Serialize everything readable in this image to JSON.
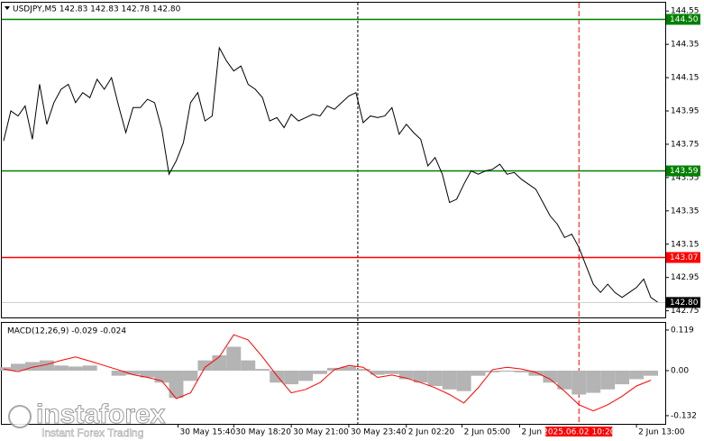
{
  "chart_data": [
    {
      "type": "line",
      "title": "USDJPY,M5  142.83 142.83 142.78 142.80",
      "color": "#000000",
      "xlim": [
        0,
        369
      ],
      "ylim": [
        142.71,
        144.6
      ],
      "yticks": [
        144.55,
        144.35,
        144.15,
        143.95,
        143.75,
        143.55,
        143.35,
        143.15,
        142.95,
        142.75
      ],
      "x": [
        1,
        5,
        9,
        13,
        17,
        21,
        25,
        29,
        33,
        37,
        41,
        45,
        49,
        53,
        57,
        61,
        65,
        69,
        73,
        77,
        81,
        85,
        89,
        93,
        97,
        101,
        105,
        109,
        113,
        117,
        121,
        125,
        129,
        133,
        137,
        141,
        145,
        149,
        153,
        157,
        161,
        165,
        169,
        173,
        177,
        181,
        185,
        189,
        193,
        197,
        201,
        205,
        209,
        213,
        217,
        221,
        225,
        229,
        233,
        237,
        241,
        245,
        249,
        253,
        257,
        261,
        265,
        269,
        273,
        277,
        281,
        285,
        289,
        293,
        297,
        301,
        305,
        309,
        313,
        317,
        321,
        325,
        329,
        333,
        337,
        341,
        345,
        349,
        353,
        357,
        361,
        365
      ],
      "values": [
        143.77,
        143.95,
        143.92,
        143.98,
        143.78,
        144.11,
        143.87,
        144.0,
        144.08,
        144.11,
        144.0,
        144.06,
        144.03,
        144.14,
        144.08,
        144.15,
        143.98,
        143.82,
        143.97,
        143.97,
        144.02,
        144.0,
        143.84,
        143.57,
        143.65,
        143.76,
        144.0,
        144.06,
        143.89,
        143.92,
        144.33,
        144.25,
        144.19,
        144.22,
        144.11,
        144.08,
        144.03,
        143.89,
        143.91,
        143.85,
        143.93,
        143.89,
        143.91,
        143.93,
        143.92,
        143.98,
        143.96,
        144.0,
        144.04,
        144.06,
        143.88,
        143.92,
        143.91,
        143.92,
        143.97,
        143.81,
        143.87,
        143.82,
        143.78,
        143.62,
        143.67,
        143.57,
        143.4,
        143.42,
        143.51,
        143.59,
        143.57,
        143.59,
        143.6,
        143.63,
        143.57,
        143.58,
        143.54,
        143.51,
        143.48,
        143.4,
        143.32,
        143.27,
        143.19,
        143.21,
        143.13,
        143.02,
        142.91,
        142.86,
        142.91,
        142.86,
        142.83,
        142.86,
        142.89,
        142.94,
        142.83,
        142.8
      ],
      "levels": [
        {
          "value": 144.5,
          "label": "144.50",
          "color": "#008000"
        },
        {
          "value": 143.59,
          "label": "143.59",
          "color": "#008000"
        },
        {
          "value": 143.07,
          "label": "143.07",
          "color": "#ff0000"
        }
      ],
      "last_price": {
        "value": 142.8,
        "label": "142.80"
      },
      "markers": [
        {
          "x": 198,
          "color": "#000000"
        },
        {
          "x": 321,
          "color": "#ff0000",
          "label": "2025.06.02 10:20"
        }
      ],
      "watermark": {
        "name": "instaforex",
        "tagline": "Instant Forex Trading"
      }
    },
    {
      "type": "macd",
      "title": "MACD(12,26,9) -0.029 -0.024",
      "xlim": [
        0,
        369
      ],
      "ylim": [
        -0.156,
        0.14
      ],
      "yticks": [
        0.119,
        {
          "value": 0,
          "label": "0.00"
        },
        -0.132
      ],
      "xticks": [
        {
          "value": 98,
          "label": "30 May 15:40"
        },
        {
          "value": 129,
          "label": "30 May 18:20"
        },
        {
          "value": 161,
          "label": "30 May 21:00"
        },
        {
          "value": 193,
          "label": "30 May 23:40"
        },
        {
          "value": 225,
          "label": "2 Jun 02:20"
        },
        {
          "value": 256,
          "label": "2 Jun 05:00"
        },
        {
          "value": 288,
          "label": "2 Jun"
        },
        {
          "value": 353,
          "label": "2 Jun 13:00"
        }
      ],
      "x": [
        1,
        9,
        17,
        25,
        33,
        41,
        49,
        57,
        65,
        73,
        81,
        89,
        97,
        105,
        113,
        121,
        129,
        137,
        145,
        153,
        161,
        169,
        177,
        185,
        193,
        201,
        209,
        217,
        225,
        233,
        241,
        249,
        257,
        265,
        273,
        281,
        289,
        297,
        305,
        313,
        321,
        329,
        337,
        345,
        353,
        361
      ],
      "series": [
        {
          "name": "MACD",
          "color": "#b4b4b4",
          "values": [
            0.01,
            0.02,
            0.025,
            0.03,
            0.015,
            0.012,
            0.015,
            0.0,
            -0.015,
            -0.012,
            -0.02,
            -0.035,
            -0.08,
            -0.03,
            0.03,
            0.045,
            0.07,
            0.03,
            0.005,
            -0.035,
            -0.04,
            -0.03,
            -0.01,
            0.008,
            0.012,
            0.005,
            -0.012,
            -0.01,
            -0.025,
            -0.035,
            -0.045,
            -0.055,
            -0.06,
            -0.015,
            -0.005,
            -0.003,
            -0.005,
            -0.015,
            -0.035,
            -0.055,
            -0.07,
            -0.065,
            -0.055,
            -0.04,
            -0.025,
            -0.015
          ]
        },
        {
          "name": "Signal",
          "color": "#ff0000",
          "values": [
            0.005,
            -0.003,
            0.01,
            0.018,
            0.03,
            0.04,
            0.028,
            0.015,
            0.002,
            -0.012,
            -0.02,
            -0.03,
            -0.082,
            -0.065,
            0.01,
            0.04,
            0.105,
            0.09,
            0.04,
            -0.015,
            -0.065,
            -0.055,
            -0.035,
            0.003,
            0.015,
            0.01,
            -0.02,
            -0.013,
            -0.022,
            -0.035,
            -0.05,
            -0.07,
            -0.095,
            -0.05,
            0.003,
            0.01,
            0.005,
            -0.005,
            -0.025,
            -0.06,
            -0.1,
            -0.118,
            -0.1,
            -0.075,
            -0.045,
            -0.028
          ]
        }
      ]
    }
  ]
}
